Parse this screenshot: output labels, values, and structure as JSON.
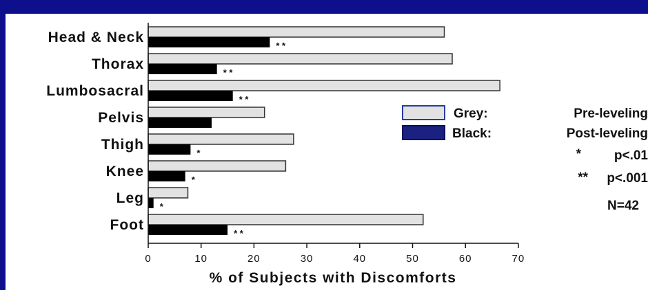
{
  "chart_data": {
    "type": "bar",
    "orientation": "horizontal",
    "categories": [
      "Head & Neck",
      "Thorax",
      "Lumbosacral",
      "Pelvis",
      "Thigh",
      "Knee",
      "Leg",
      "Foot"
    ],
    "series": [
      {
        "values": [
          56,
          57.5,
          66.5,
          22,
          27.5,
          26,
          7.5,
          52
        ],
        "color": "#e2e2e2"
      },
      {
        "values": [
          23,
          13,
          16,
          12,
          8,
          7,
          1,
          15
        ],
        "color": "#000000"
      }
    ],
    "significance": [
      "* *",
      "* *",
      "* *",
      "",
      "*",
      "*",
      "*",
      "* *"
    ],
    "xlabel": "% of Subjects with Discomforts",
    "xlim": [
      0,
      70
    ],
    "xticks": [
      0,
      10,
      20,
      30,
      40,
      50,
      60,
      70
    ],
    "legend": {
      "entries": [
        {
          "key": "Grey:",
          "label": "Pre-leveling",
          "color": "#e2e2e2"
        },
        {
          "key": "Black:",
          "label": "Post-leveling",
          "color": "#1a2180"
        }
      ],
      "notes": [
        {
          "mark": "*",
          "text": "p<.01"
        },
        {
          "mark": "**",
          "text": "p<.001"
        }
      ],
      "sample": "N=42",
      "placement": "right"
    }
  }
}
